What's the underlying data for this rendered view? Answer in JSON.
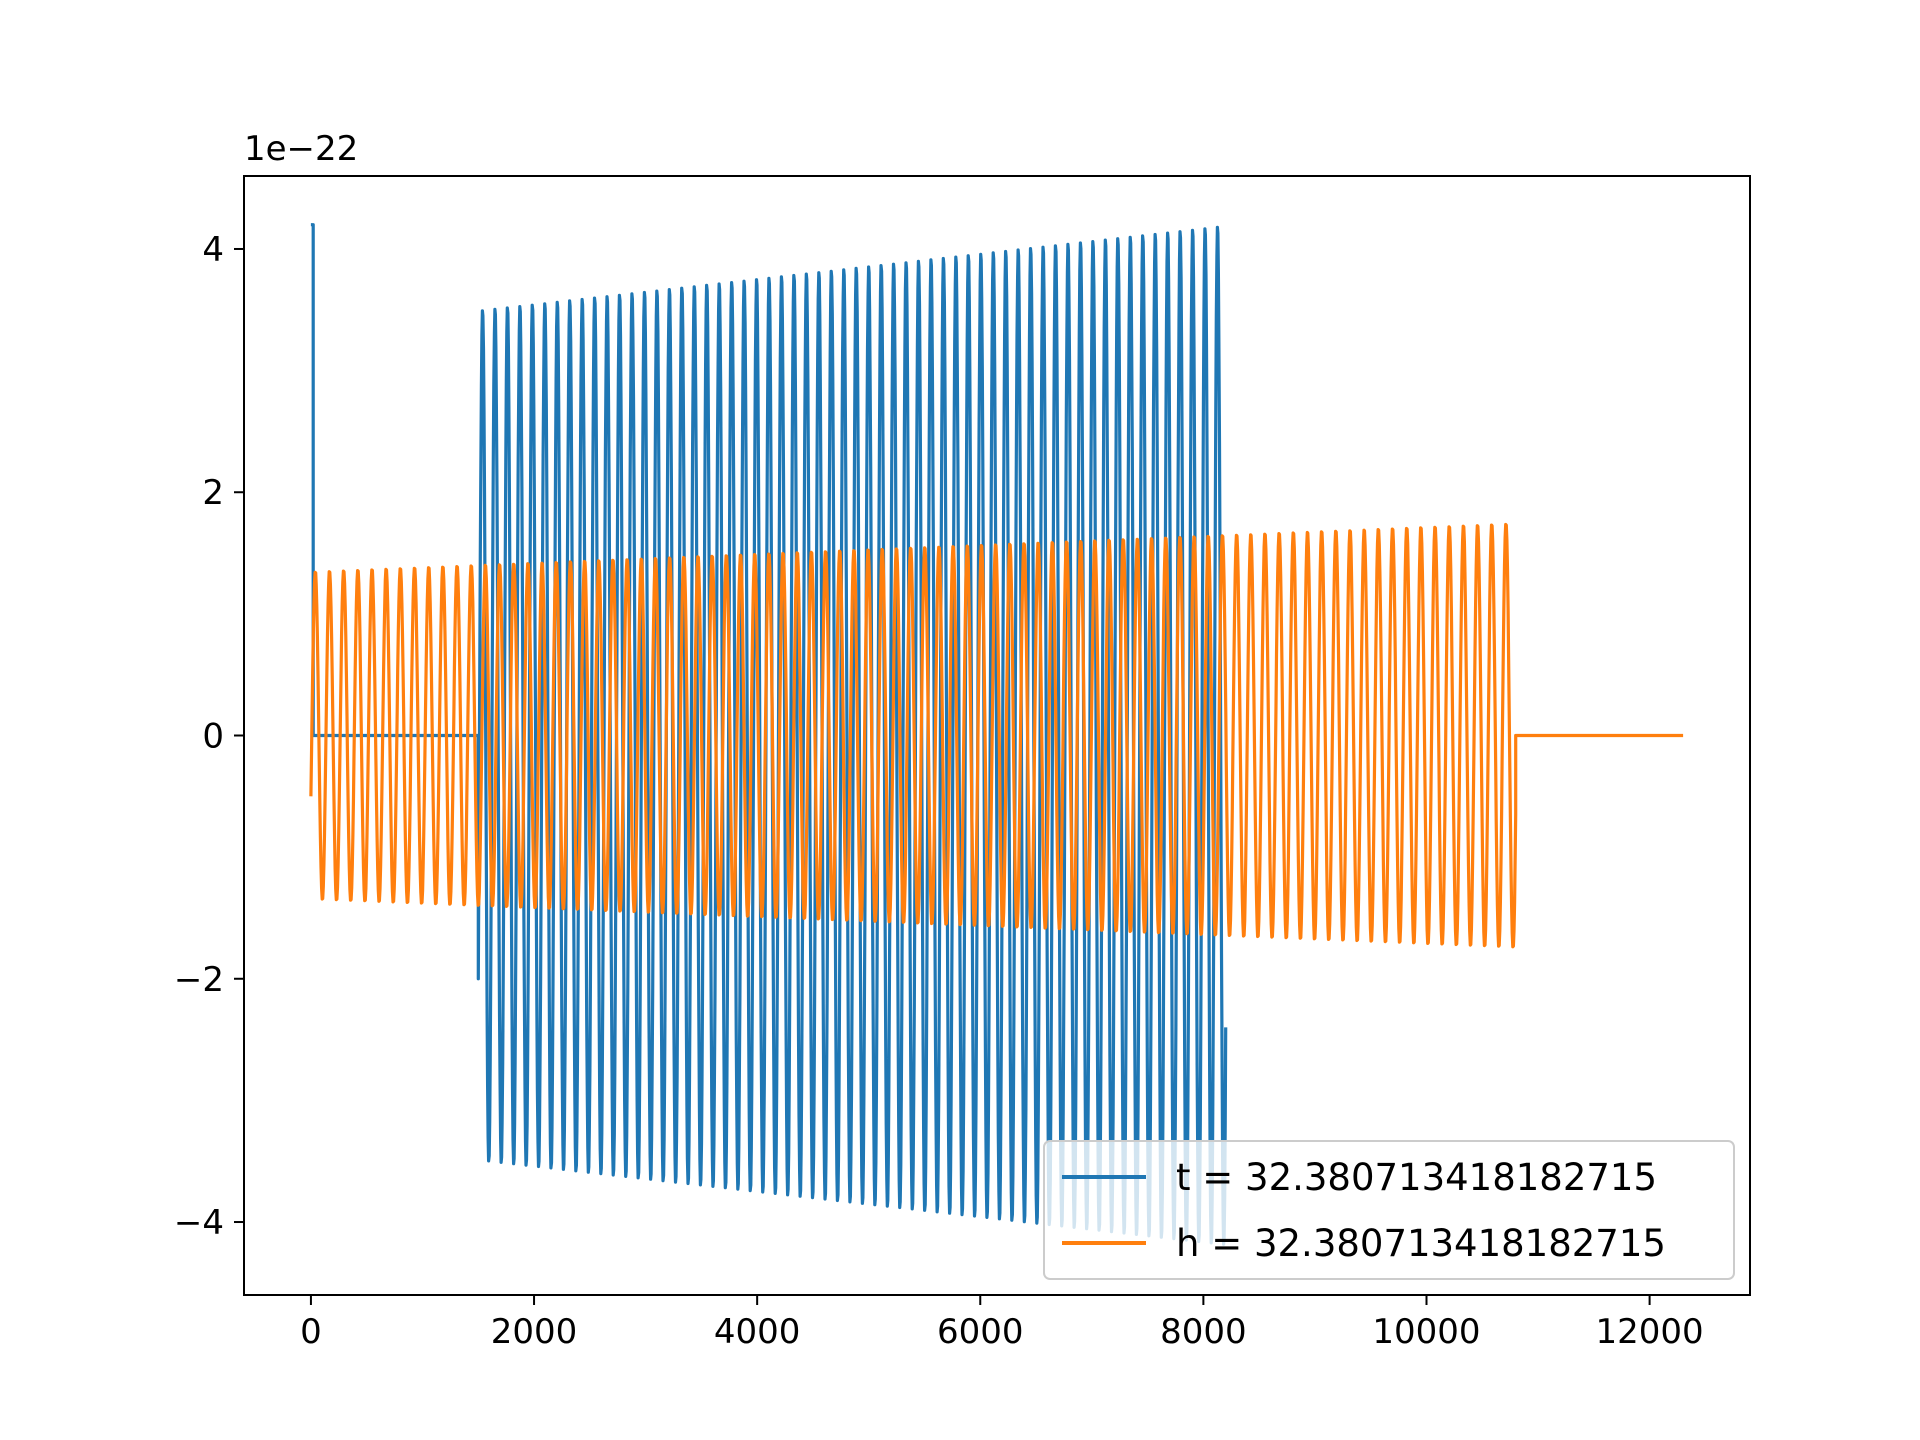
{
  "chart_data": {
    "type": "line",
    "title": "",
    "xlabel": "",
    "ylabel": "",
    "y_offset_label": "1e−22",
    "xlim": [
      -600,
      12900
    ],
    "ylim": [
      -4.6,
      4.6
    ],
    "x_ticks": [
      0,
      2000,
      4000,
      6000,
      8000,
      10000,
      12000
    ],
    "x_tick_labels": [
      "0",
      "2000",
      "4000",
      "6000",
      "8000",
      "10000",
      "12000"
    ],
    "y_ticks": [
      -4,
      -2,
      0,
      2,
      4
    ],
    "y_tick_labels": [
      "−4",
      "−2",
      "0",
      "2",
      "4"
    ],
    "grid": false,
    "legend_position": "lower-right",
    "series": [
      {
        "name": "t = 32.380713418182715",
        "color": "#1f77b4",
        "segments": [
          {
            "x": [
              0,
              20
            ],
            "y": [
              4.2,
              4.2
            ],
            "kind": "spike"
          },
          {
            "x": [
              20,
              1500
            ],
            "y": [
              0,
              0
            ],
            "kind": "flat"
          },
          {
            "x": [
              1500,
              8200
            ],
            "kind": "oscillation",
            "cycles": 60,
            "amp_start": 3.5,
            "amp_end": 4.2,
            "y_start": -2.0
          }
        ]
      },
      {
        "name": "h = 32.380713418182715",
        "color": "#ff7f0e",
        "segments": [
          {
            "x": [
              0,
              10800
            ],
            "kind": "oscillation",
            "cycles": 85,
            "amp_start": 1.35,
            "amp_end": 1.75,
            "y_start": -0.5
          },
          {
            "x": [
              10800,
              12300
            ],
            "y": [
              0,
              0
            ],
            "kind": "flat"
          }
        ]
      }
    ]
  }
}
